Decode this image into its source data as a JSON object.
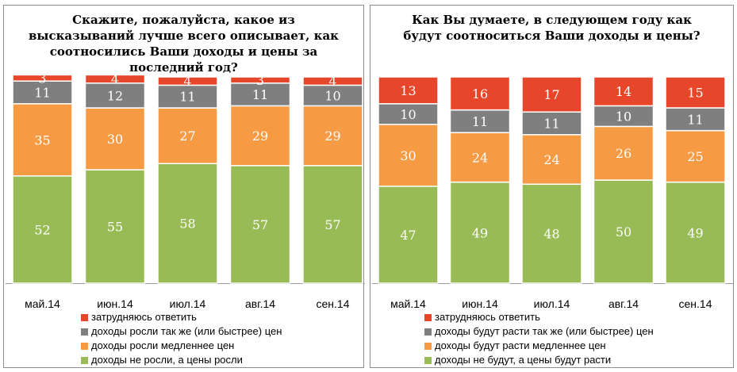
{
  "colors": {
    "struggle": "#e8462a",
    "same_or_faster": "#7f7f7f",
    "slower": "#f79a44",
    "no_growth": "#98bb56"
  },
  "chart_data": [
    {
      "type": "bar",
      "stacked": true,
      "title": "Скажите, пожалуйста, какое из высказываний лучше всего описывает, как соотносились Ваши доходы и цены за последний год?",
      "title_lines": [
        "Скажите, пожалуйста, какое из",
        "высказываний лучше всего описывает, как",
        "соотносились Ваши доходы и цены за",
        "последний год?"
      ],
      "categories": [
        "май.14",
        "июн.14",
        "июл.14",
        "авг.14",
        "сен.14"
      ],
      "series": [
        {
          "name": "доходы не росли, а цены росли",
          "color_key": "no_growth",
          "values": [
            52,
            55,
            58,
            57,
            57
          ]
        },
        {
          "name": "доходы росли медленнее цен",
          "color_key": "slower",
          "values": [
            35,
            30,
            27,
            29,
            29
          ]
        },
        {
          "name": "доходы росли так же (или быстрее) цен",
          "color_key": "same_or_faster",
          "values": [
            11,
            12,
            11,
            11,
            10
          ]
        },
        {
          "name": "затрудняюсь ответить",
          "color_key": "struggle",
          "values": [
            3,
            4,
            4,
            3,
            4
          ]
        }
      ],
      "legend_order": [
        3,
        2,
        1,
        0
      ],
      "legend_position": "bottom",
      "ylim": [
        0,
        100
      ],
      "grid": false
    },
    {
      "type": "bar",
      "stacked": true,
      "title": "Как Вы думаете, в следующем году как будут соотноситься Ваши доходы и цены?",
      "title_lines": [
        "Как Вы думаете, в следующем году как",
        "будут соотноситься Ваши доходы и цены?"
      ],
      "categories": [
        "май.14",
        "июн.14",
        "июл.14",
        "авг.14",
        "сен.14"
      ],
      "series": [
        {
          "name": "доходы не будут, а цены будут расти",
          "color_key": "no_growth",
          "values": [
            47,
            49,
            48,
            50,
            49
          ]
        },
        {
          "name": "доходы будут расти медленнее цен",
          "color_key": "slower",
          "values": [
            30,
            24,
            24,
            26,
            25
          ]
        },
        {
          "name": "доходы будут расти так же (или быстрее) цен",
          "color_key": "same_or_faster",
          "values": [
            10,
            11,
            11,
            10,
            11
          ]
        },
        {
          "name": "затрудняюсь ответить",
          "color_key": "struggle",
          "values": [
            13,
            16,
            17,
            14,
            15
          ]
        }
      ],
      "legend_order": [
        3,
        2,
        1,
        0
      ],
      "legend_position": "bottom",
      "ylim": [
        0,
        100
      ],
      "grid": false
    }
  ]
}
